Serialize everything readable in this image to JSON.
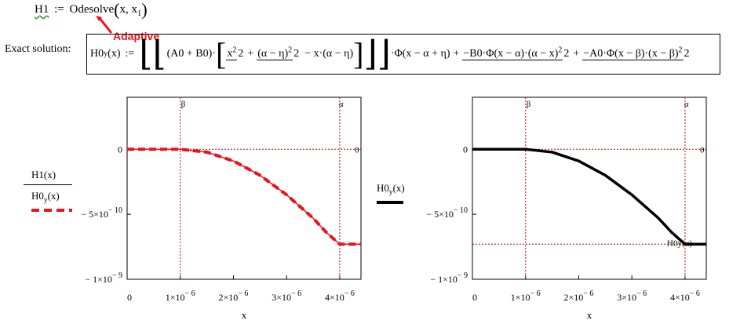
{
  "definition": {
    "lhs": "H1",
    "assign": ":=",
    "func": "Odesolve",
    "arg1": "x",
    "arg2": "x",
    "arg2_sub": "1",
    "solver_label": "Adaptive",
    "solver_color": "#e8141c"
  },
  "exact": {
    "label": "Exact solution:",
    "lhs_name": "H0",
    "lhs_sub": "y",
    "lhs_arg": "(x)",
    "assign": ":=",
    "term1_coef": "(A0 + B0)·",
    "term1_f1_num": "x",
    "term1_f1_num_sup": "2",
    "term1_f1_den": "2",
    "plus1": "+",
    "term1_f2_num": "(α − η)",
    "term1_f2_num_sup": "2",
    "term1_f2_den": "2",
    "term1_tail": "− x·(α − η)",
    "phi1": "·Φ(x − α + η)",
    "plus2": "+",
    "term2_num": "−B0·Φ(x − α)·(α − x)",
    "term2_sup": "2",
    "term2_den": "2",
    "plus3": "+",
    "term3_num": "−A0·Φ(x − β)·(x − β)",
    "term3_sup": "2",
    "term3_den": "2"
  },
  "legend_left": {
    "series1": "H1(x)",
    "series2_name": "H0",
    "series2_sub": "y",
    "series2_arg": "(x)"
  },
  "legend_right": {
    "series_name": "H0",
    "series_sub": "y",
    "series_arg": "(x)"
  },
  "colors": {
    "dashed_red": "#e8141c",
    "grid_red": "#d40000",
    "black": "#000000"
  },
  "chart_data": [
    {
      "type": "line",
      "name": "left-plot",
      "xlabel": "x",
      "ylabel": "",
      "xlim": [
        0,
        4.4e-06
      ],
      "ylim": [
        -1e-09,
        4e-10
      ],
      "x_ticks": [
        {
          "value": 0,
          "base": "0",
          "exp": ""
        },
        {
          "value": 1e-06,
          "base": "1×10",
          "exp": "− 6"
        },
        {
          "value": 2e-06,
          "base": "2×10",
          "exp": "− 6"
        },
        {
          "value": 3e-06,
          "base": "3×10",
          "exp": "− 6"
        },
        {
          "value": 4e-06,
          "base": "4×10",
          "exp": "− 6"
        }
      ],
      "y_ticks": [
        {
          "value": 0,
          "base": "0",
          "exp": ""
        },
        {
          "value": -5e-10,
          "base": "− 5×10",
          "exp": "− 10"
        },
        {
          "value": -1e-09,
          "base": "− 1×10",
          "exp": "− 9"
        }
      ],
      "markers": {
        "beta": 1e-06,
        "alpha": 4e-06,
        "zero": 0
      },
      "marker_labels": {
        "beta": "β",
        "alpha": "α",
        "zero_right": "0"
      },
      "series": [
        {
          "name": "H1(x)",
          "style": "solid-thin",
          "color": "#e8141c",
          "x": [
            0,
            1e-06,
            1.5e-06,
            2e-06,
            2.5e-06,
            3e-06,
            3.5e-06,
            3.75e-06,
            4e-06,
            4.4e-06
          ],
          "y": [
            0,
            0,
            -2.2e-11,
            -9e-11,
            -2e-10,
            -3.5e-10,
            -5.3e-10,
            -6.4e-10,
            -7.3e-10,
            -7.3e-10
          ]
        },
        {
          "name": "H0y(x)",
          "style": "dashed-thick",
          "color": "#e8141c",
          "x": [
            0,
            1e-06,
            1.5e-06,
            2e-06,
            2.5e-06,
            3e-06,
            3.5e-06,
            3.75e-06,
            4e-06,
            4.4e-06
          ],
          "y": [
            0,
            0,
            -2.2e-11,
            -9e-11,
            -2e-10,
            -3.5e-10,
            -5.3e-10,
            -6.4e-10,
            -7.3e-10,
            -7.3e-10
          ]
        }
      ]
    },
    {
      "type": "line",
      "name": "right-plot",
      "xlabel": "x",
      "ylabel": "",
      "xlim": [
        0,
        4.4e-06
      ],
      "ylim": [
        -1e-09,
        4e-10
      ],
      "x_ticks": [
        {
          "value": 0,
          "base": "0",
          "exp": ""
        },
        {
          "value": 1e-06,
          "base": "1×10",
          "exp": "− 6"
        },
        {
          "value": 2e-06,
          "base": "2×10",
          "exp": "− 6"
        },
        {
          "value": 3e-06,
          "base": "3×10",
          "exp": "− 6"
        },
        {
          "value": 4e-06,
          "base": "4×10",
          "exp": "− 6"
        }
      ],
      "y_ticks": [
        {
          "value": 0,
          "base": "0",
          "exp": ""
        },
        {
          "value": -5e-10,
          "base": "− 5×10",
          "exp": "− 10"
        },
        {
          "value": -1e-09,
          "base": "− 1×10",
          "exp": "− 9"
        }
      ],
      "markers": {
        "beta": 1e-06,
        "alpha": 4e-06,
        "zero": 0,
        "h0_alpha": -7.3e-10
      },
      "marker_labels": {
        "beta": "β",
        "alpha": "α",
        "zero_right": "0",
        "h0_alpha_label": "H0y(α)"
      },
      "series": [
        {
          "name": "H0y(x)",
          "style": "solid-thick",
          "color": "#000000",
          "x": [
            0,
            1e-06,
            1.5e-06,
            2e-06,
            2.5e-06,
            3e-06,
            3.5e-06,
            3.75e-06,
            4e-06,
            4.4e-06
          ],
          "y": [
            0,
            0,
            -2.2e-11,
            -9e-11,
            -2e-10,
            -3.5e-10,
            -5.3e-10,
            -6.4e-10,
            -7.3e-10,
            -7.3e-10
          ]
        }
      ]
    }
  ]
}
